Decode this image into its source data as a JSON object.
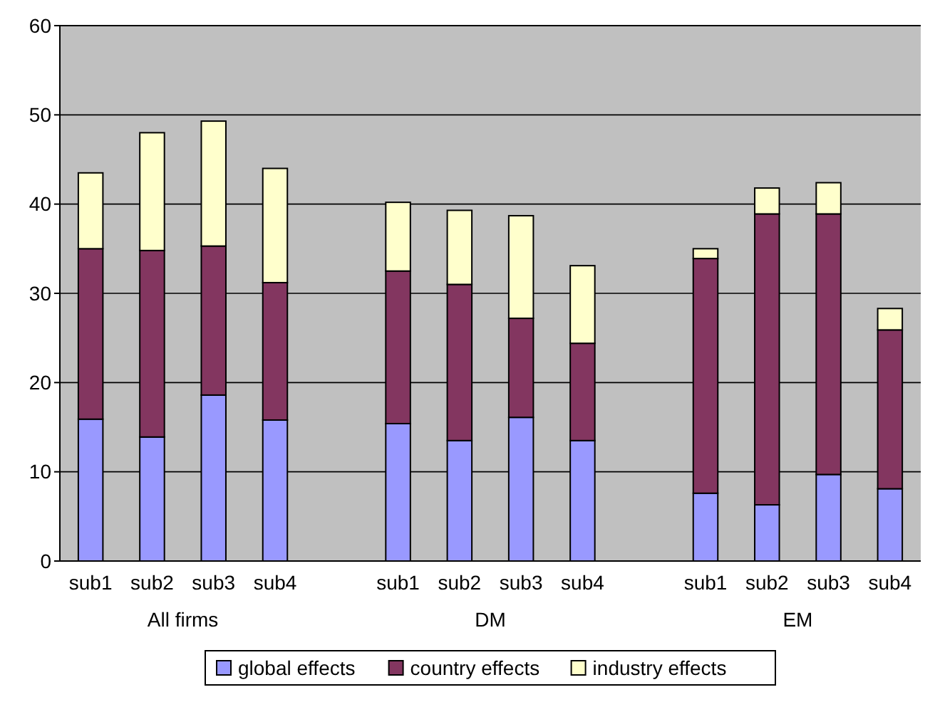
{
  "chart_data": {
    "type": "bar",
    "stacked": true,
    "categories": [
      "sub1",
      "sub2",
      "sub3",
      "sub4",
      null,
      "sub1",
      "sub2",
      "sub3",
      "sub4",
      null,
      "sub1",
      "sub2",
      "sub3",
      "sub4"
    ],
    "series": [
      {
        "name": "global effects",
        "color": "#9999ff",
        "values": [
          15.9,
          13.9,
          18.6,
          15.8,
          null,
          15.4,
          13.5,
          16.1,
          13.5,
          null,
          7.6,
          6.3,
          9.7,
          8.1
        ]
      },
      {
        "name": "country effects",
        "color": "#833660",
        "values": [
          19.1,
          20.9,
          16.7,
          15.4,
          null,
          17.1,
          17.5,
          11.1,
          10.9,
          null,
          26.3,
          32.6,
          29.2,
          17.8
        ]
      },
      {
        "name": "industry effects",
        "color": "#ffffcc",
        "values": [
          8.5,
          13.2,
          14.0,
          12.8,
          null,
          7.7,
          8.3,
          11.5,
          8.7,
          null,
          1.1,
          2.9,
          3.5,
          2.4
        ]
      }
    ],
    "annotations": [
      "All firms",
      "DM",
      "EM"
    ],
    "ylim": [
      0,
      60
    ],
    "yticks": [
      0,
      10,
      20,
      30,
      40,
      50,
      60
    ],
    "grid": "y",
    "legend": "bottom"
  }
}
